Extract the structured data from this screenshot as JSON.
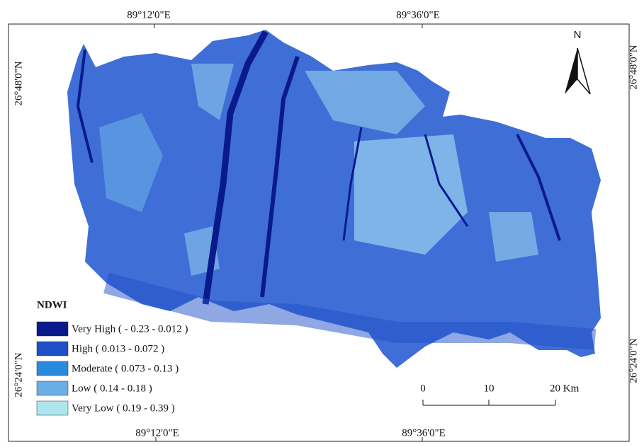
{
  "coordinates": {
    "top": [
      "89°12'0\"E",
      "89°36'0\"E"
    ],
    "bottom": [
      "89°12'0\"E",
      "89°36'0\"E"
    ],
    "left": [
      "26°48'0\"N",
      "26°24'0\"N"
    ],
    "right": [
      "26°48'0\"N",
      "26°24'0\"N"
    ]
  },
  "north": "N",
  "legend": {
    "title": "NDWI",
    "items": [
      {
        "label": "Very High ( - 0.23 -  0.012 )",
        "color": "#0a1a8c"
      },
      {
        "label": "High ( 0.013 - 0.072 )",
        "color": "#1f4fc7"
      },
      {
        "label": "Moderate ( 0.073 - 0.13 )",
        "color": "#2a8ae0"
      },
      {
        "label": "Low ( 0.14 - 0.18 )",
        "color": "#6aaee6"
      },
      {
        "label": "Very Low ( 0.19 - 0.39 )",
        "color": "#aee6f0"
      }
    ]
  },
  "scale_bar": {
    "labels": [
      "0",
      "10",
      "20 Km"
    ]
  }
}
